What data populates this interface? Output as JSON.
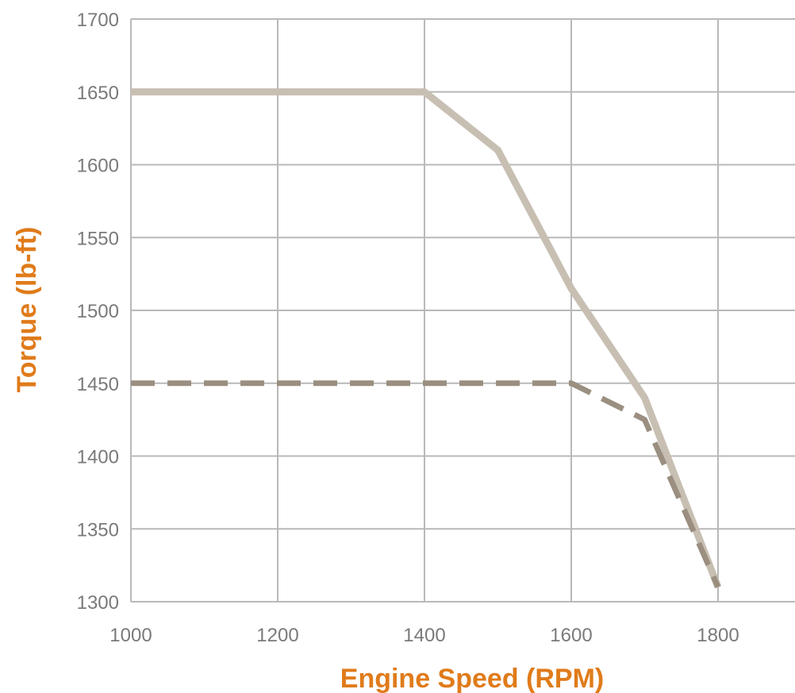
{
  "colors": {
    "grid": "#b9b9b9",
    "tick_text": "#7a7a7a",
    "axis_title": "#e07b1a",
    "solid_series": "#c8bfb3",
    "dashed_series": "#9a8f80"
  },
  "chart_data": {
    "type": "line",
    "title": "",
    "xlabel": "Engine Speed (RPM)",
    "ylabel": "Torque (lb-ft)",
    "xlim": [
      1000,
      1900
    ],
    "ylim": [
      1300,
      1700
    ],
    "x_ticks": [
      "1000",
      "1200",
      "1400",
      "1600",
      "1800"
    ],
    "y_ticks": [
      "1300",
      "1350",
      "1400",
      "1450",
      "1500",
      "1550",
      "1600",
      "1650",
      "1700"
    ],
    "grid": true,
    "legend": "none",
    "series": [
      {
        "style": "solid",
        "x": [
          1000,
          1400,
          1500,
          1600,
          1700,
          1800
        ],
        "y": [
          1650,
          1650,
          1610,
          1515,
          1440,
          1310
        ]
      },
      {
        "style": "dashed",
        "x": [
          1000,
          1600,
          1700,
          1800
        ],
        "y": [
          1450,
          1450,
          1425,
          1310
        ]
      }
    ]
  }
}
